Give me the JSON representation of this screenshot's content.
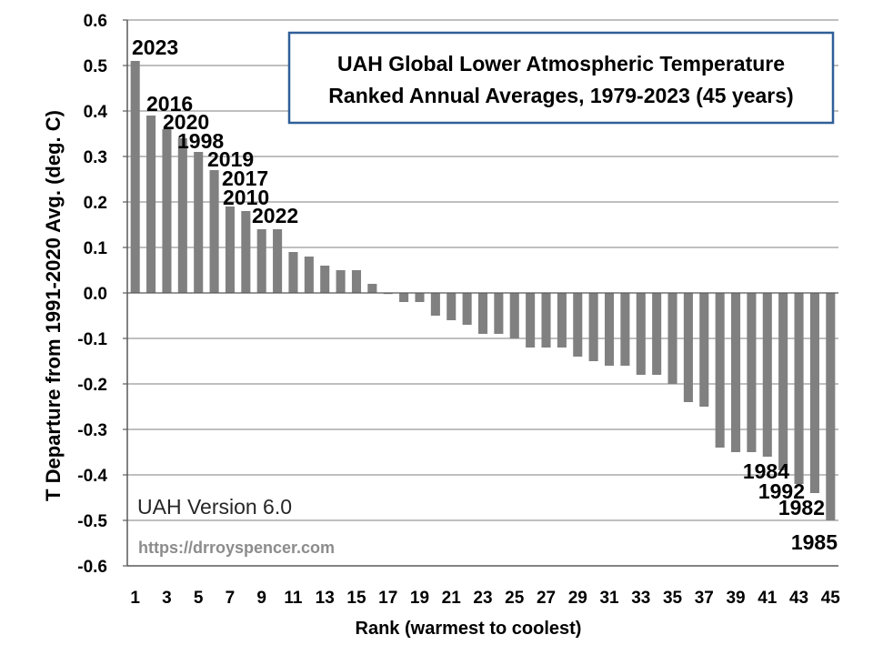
{
  "chart_data": {
    "type": "bar",
    "title_lines": [
      "UAH Global Lower Atmospheric Temperature",
      "Ranked Annual Averages, 1979-2023 (45 years)"
    ],
    "xlabel": "Rank (warmest to coolest)",
    "ylabel": "T Departure from 1991-2020 Avg. (deg. C)",
    "ylim": [
      -0.6,
      0.6
    ],
    "ytick_labels": [
      "0.6",
      "0.5",
      "0.4",
      "0.3",
      "0.2",
      "0.1",
      "0.0",
      "-0.1",
      "-0.2",
      "-0.3",
      "-0.4",
      "-0.5",
      "-0.6"
    ],
    "ytick_values": [
      0.6,
      0.5,
      0.4,
      0.3,
      0.2,
      0.1,
      0.0,
      -0.1,
      -0.2,
      -0.3,
      -0.4,
      -0.5,
      -0.6
    ],
    "xtick_labels": [
      "1",
      "3",
      "5",
      "7",
      "9",
      "11",
      "13",
      "15",
      "17",
      "19",
      "21",
      "23",
      "25",
      "27",
      "29",
      "31",
      "33",
      "35",
      "37",
      "39",
      "41",
      "43",
      "45"
    ],
    "ranks": [
      1,
      2,
      3,
      4,
      5,
      6,
      7,
      8,
      9,
      10,
      11,
      12,
      13,
      14,
      15,
      16,
      17,
      18,
      19,
      20,
      21,
      22,
      23,
      24,
      25,
      26,
      27,
      28,
      29,
      30,
      31,
      32,
      33,
      34,
      35,
      36,
      37,
      38,
      39,
      40,
      41,
      42,
      43,
      44,
      45
    ],
    "values": [
      0.51,
      0.39,
      0.36,
      0.34,
      0.31,
      0.27,
      0.19,
      0.18,
      0.14,
      0.14,
      0.09,
      0.08,
      0.06,
      0.05,
      0.05,
      0.02,
      0.0,
      -0.02,
      -0.02,
      -0.05,
      -0.06,
      -0.07,
      -0.09,
      -0.09,
      -0.1,
      -0.12,
      -0.12,
      -0.12,
      -0.14,
      -0.15,
      -0.16,
      -0.16,
      -0.18,
      -0.18,
      -0.2,
      -0.24,
      -0.25,
      -0.34,
      -0.35,
      -0.35,
      -0.36,
      -0.39,
      -0.42,
      -0.44,
      -0.5
    ],
    "annotations": [
      {
        "label": "2023",
        "rank": 1
      },
      {
        "label": "2016",
        "rank": 2
      },
      {
        "label": "2020",
        "rank": 3
      },
      {
        "label": "1998",
        "rank": 4
      },
      {
        "label": "2019",
        "rank": 5
      },
      {
        "label": "2017",
        "rank": 6
      },
      {
        "label": "2010",
        "rank": 7
      },
      {
        "label": "2022",
        "rank": 9
      },
      {
        "label": "1984",
        "rank": 40
      },
      {
        "label": "1992",
        "rank": 41
      },
      {
        "label": "1982",
        "rank": 43
      },
      {
        "label": "1985",
        "rank": 45
      }
    ],
    "version_text": "UAH Version 6.0",
    "url_text": "https://drroyspencer.com",
    "bar_color": "#808080",
    "title_border_color": "#2f5f97",
    "grid": true
  }
}
